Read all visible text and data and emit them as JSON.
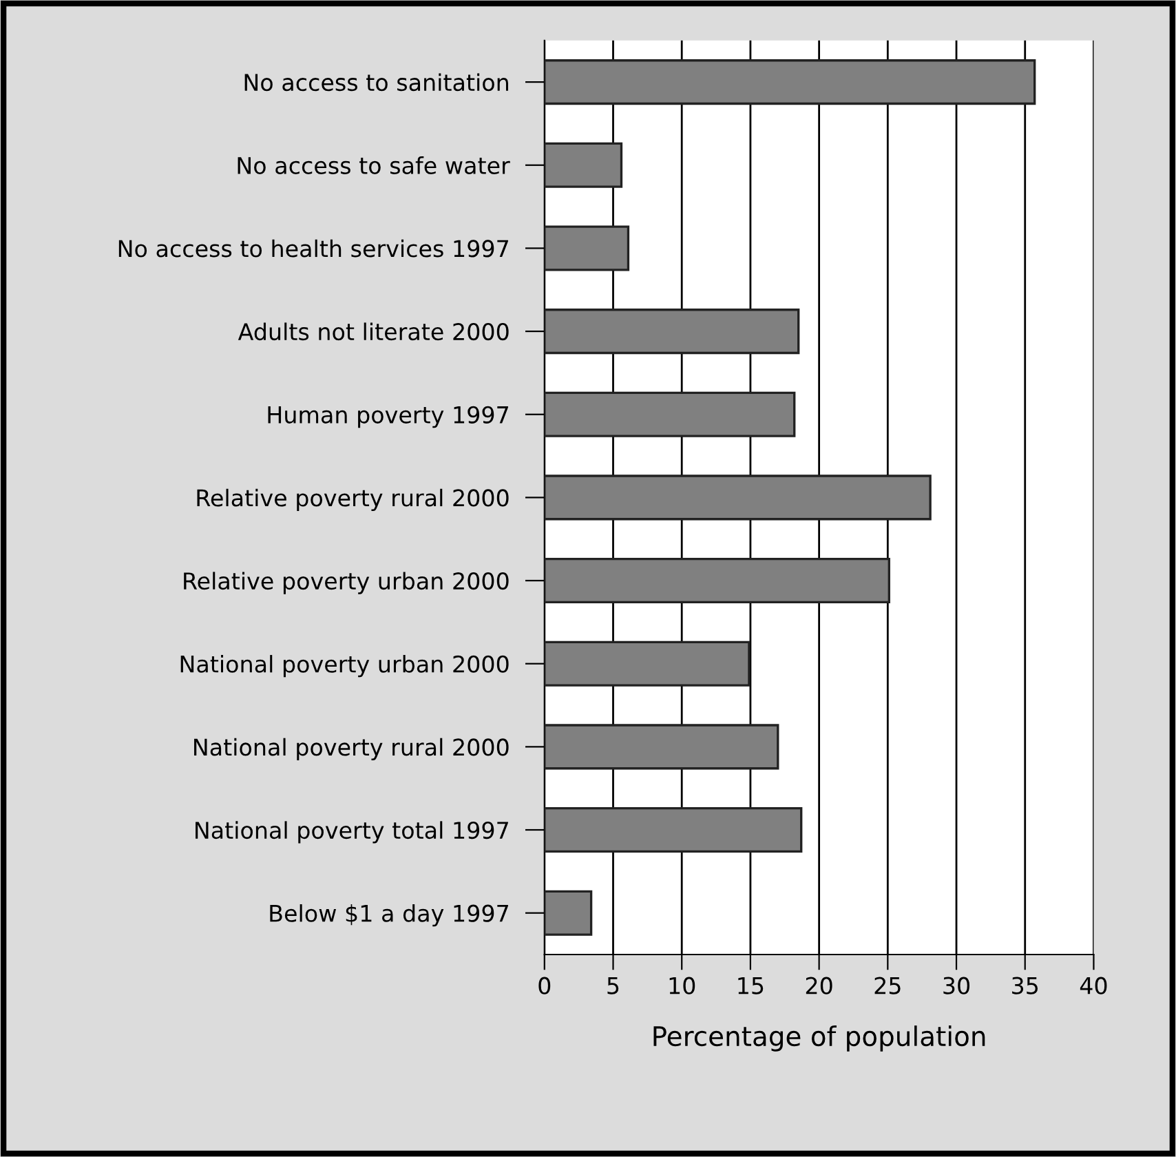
{
  "chart_data": {
    "type": "bar",
    "orientation": "horizontal",
    "xlabel": "Percentage of population",
    "categories": [
      "No access to sanitation",
      "No access to safe water",
      "No access to health services 1997",
      "Adults not literate 2000",
      "Human poverty 1997",
      "Relative poverty rural 2000",
      "Relative poverty urban 2000",
      "National poverty urban 2000",
      "National poverty rural 2000",
      "National poverty total 1997",
      "Below $1 a day 1997"
    ],
    "values": [
      35.7,
      5.6,
      6.1,
      18.5,
      18.2,
      28.1,
      25.1,
      14.9,
      17.0,
      18.7,
      3.4
    ],
    "color": "#808080",
    "xlim": [
      0,
      40
    ],
    "xticks": [
      0,
      5,
      10,
      15,
      20,
      25,
      30,
      35,
      40
    ],
    "grid": "x",
    "legend": false
  }
}
